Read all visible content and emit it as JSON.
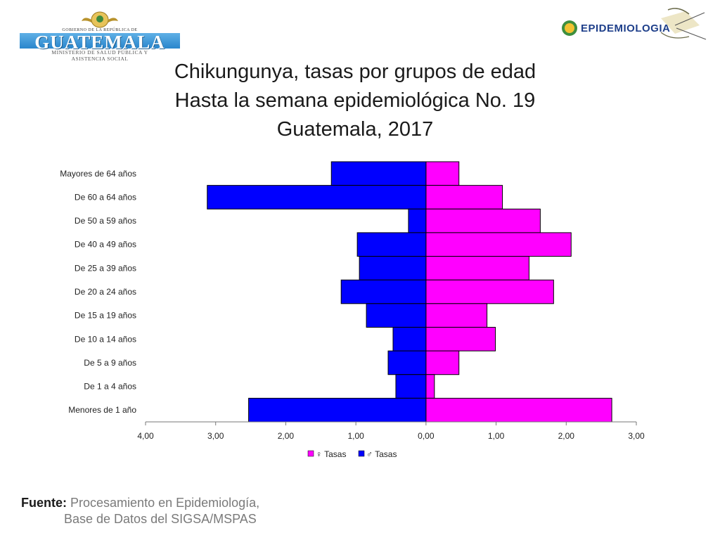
{
  "header": {
    "left_logo": {
      "top_text": "GOBIERNO DE LA REPÚBLICA DE",
      "name": "GUATEMALA",
      "line1": "MINISTERIO DE SALUD PÚBLICA Y",
      "line2": "ASISTENCIA SOCIAL"
    },
    "right_logo": {
      "text": "EPIDEMIOLOGIA"
    }
  },
  "title_lines": [
    "Chikungunya, tasas por grupos de edad",
    "Hasta la semana epidemiológica No. 19",
    "Guatemala, 2017"
  ],
  "footer": {
    "label": "Fuente:",
    "line1": "Procesamiento en Epidemiología,",
    "line2": "Base de Datos del SIGSA/MSPAS"
  },
  "colors": {
    "female": "#ff00ff",
    "male": "#0000ff"
  },
  "chart_data": {
    "type": "bar",
    "orientation": "horizontal-population-pyramid",
    "title": "Chikungunya, tasas por grupos de edad Hasta la semana epidemiológica No. 19 Guatemala, 2017",
    "categories": [
      "Mayores de 64 años",
      "De 60 a 64 años",
      "De 50 a 59 años",
      "De 40 a 49 años",
      "De 25 a 39 años",
      "De 20 a 24 años",
      "De 15 a 19 años",
      "De 10 a 14 años",
      "De 5 a 9 años",
      "De 1 a 4 años",
      "Menores de 1 año"
    ],
    "series": [
      {
        "name": "♀ Tasas",
        "side": "right",
        "values": [
          0.47,
          1.09,
          1.63,
          2.07,
          1.47,
          1.82,
          0.87,
          0.99,
          0.47,
          0.12,
          2.65
        ]
      },
      {
        "name": "♂ Tasas",
        "side": "left",
        "values": [
          1.35,
          3.12,
          0.25,
          0.98,
          0.95,
          1.21,
          0.85,
          0.47,
          0.54,
          0.43,
          2.53
        ]
      }
    ],
    "xlim": [
      -4,
      3
    ],
    "x_ticks": [
      -4,
      -3,
      -2,
      -1,
      0,
      1,
      2,
      3
    ],
    "x_tick_labels": [
      "4,00",
      "3,00",
      "2,00",
      "1,00",
      "0,00",
      "1,00",
      "2,00",
      "3,00"
    ],
    "legend": [
      "♀ Tasas",
      "♂ Tasas"
    ],
    "legend_position": "bottom",
    "grid": false
  }
}
